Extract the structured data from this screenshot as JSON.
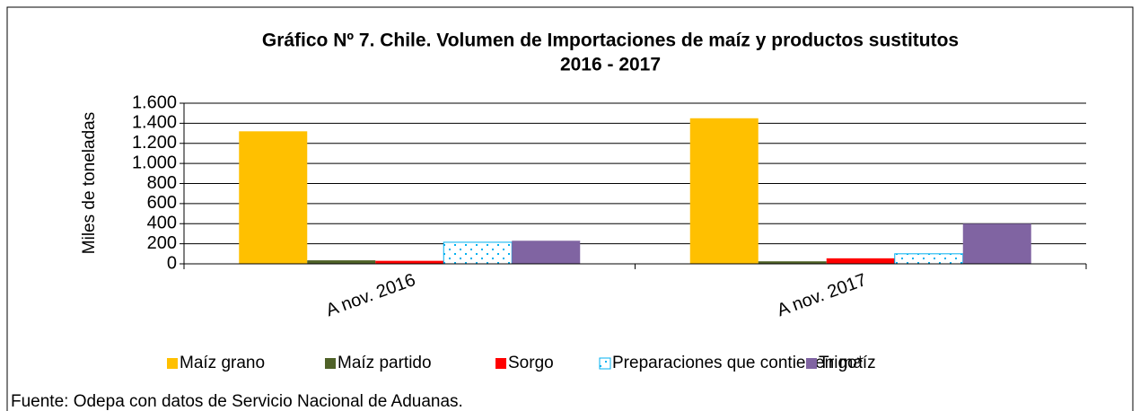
{
  "chart_data": {
    "type": "bar",
    "title": [
      "Gráfico Nº 7. Chile. Volumen de Importaciones de maíz y productos sustitutos",
      "2016 - 2017"
    ],
    "ylabel": "Miles de  toneladas",
    "categories": [
      "A nov. 2016",
      "A nov. 2017"
    ],
    "series": [
      {
        "name": "Maíz grano",
        "color": "#ffc000",
        "values": [
          1320,
          1450
        ]
      },
      {
        "name": "Maíz partido",
        "color": "#4f6228",
        "values": [
          35,
          25
        ]
      },
      {
        "name": "Sorgo",
        "color": "#ff0000",
        "values": [
          30,
          55
        ]
      },
      {
        "name": "Preparaciones que contienen maíz",
        "color": "#00b0f0",
        "pattern": "dots",
        "values": [
          215,
          100
        ]
      },
      {
        "name": "Trigo*",
        "color": "#8064a2",
        "values": [
          230,
          400
        ]
      }
    ],
    "ylim": [
      0,
      1600
    ],
    "yticks": [
      0,
      200,
      400,
      600,
      800,
      {
        "value": 1000,
        "label": "1.000"
      },
      {
        "value": 1200,
        "label": "1.200"
      },
      {
        "value": 1400,
        "label": "1.400"
      },
      {
        "value": 1600,
        "label": "1.600"
      }
    ],
    "grid": true,
    "legend": "bottom",
    "source": "Fuente: Odepa con datos de Servicio Nacional de Aduanas."
  }
}
